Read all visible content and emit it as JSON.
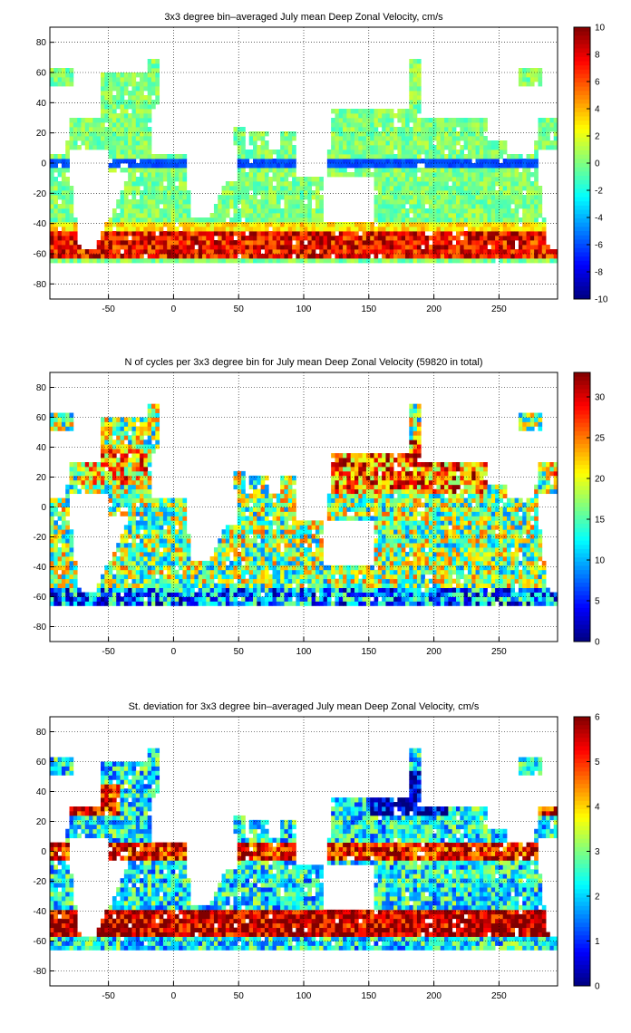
{
  "chart_data": [
    {
      "type": "heatmap",
      "title": "3x3 degree bin–averaged July mean Deep Zonal Velocity, cm/s",
      "x_ticks": [
        -50,
        0,
        50,
        100,
        150,
        200,
        250
      ],
      "y_ticks": [
        80,
        60,
        40,
        20,
        0,
        -20,
        -40,
        -60,
        -80
      ],
      "xlim": [
        -95,
        295
      ],
      "ylim": [
        -90,
        90
      ],
      "grid": true,
      "bin_size_deg": 3,
      "colorbar": {
        "min": -10,
        "max": 10,
        "ticks": [
          10,
          8,
          6,
          4,
          2,
          0,
          -2,
          -4,
          -6,
          -8,
          -10
        ],
        "colormap": "jet"
      },
      "field": "zonal_velocity",
      "features": [
        "westward jet near equator (~-5 cm/s)",
        "strong eastward Antarctic Circumpolar Current 45S–60S (~6–9 cm/s)",
        "weak flow (~0 cm/s) elsewhere"
      ]
    },
    {
      "type": "heatmap",
      "title": "N of cycles per 3x3 degree bin for July mean Deep Zonal Velocity (59820 in total)",
      "x_ticks": [
        -50,
        0,
        50,
        100,
        150,
        200,
        250
      ],
      "y_ticks": [
        80,
        60,
        40,
        20,
        0,
        -20,
        -40,
        -60,
        -80
      ],
      "xlim": [
        -95,
        295
      ],
      "ylim": [
        -90,
        90
      ],
      "grid": true,
      "bin_size_deg": 3,
      "colorbar": {
        "min": 0,
        "max": 33,
        "ticks": [
          30,
          25,
          20,
          15,
          10,
          5,
          0
        ],
        "colormap": "jet"
      },
      "field": "cycle_count",
      "features": [
        "dense sampling in subtropical North Pacific and North Atlantic (~25–33)",
        "sparse sampling near coasts and Southern Ocean (~0–8)"
      ]
    },
    {
      "type": "heatmap",
      "title": "St. deviation for 3x3 degree bin–averaged July mean Deep Zonal Velocity, cm/s",
      "x_ticks": [
        -50,
        0,
        50,
        100,
        150,
        200,
        250
      ],
      "y_ticks": [
        80,
        60,
        40,
        20,
        0,
        -20,
        -40,
        -60,
        -80
      ],
      "xlim": [
        -95,
        295
      ],
      "ylim": [
        -90,
        90
      ],
      "grid": true,
      "bin_size_deg": 3,
      "colorbar": {
        "min": 0,
        "max": 6,
        "ticks": [
          6,
          5,
          4,
          3,
          2,
          1,
          0
        ],
        "colormap": "jet"
      },
      "field": "velocity_std",
      "features": [
        "high variability in equatorial band and Southern Ocean (~5–6)",
        "low variability in North Pacific gyre (~0.5–1.5)"
      ]
    }
  ]
}
